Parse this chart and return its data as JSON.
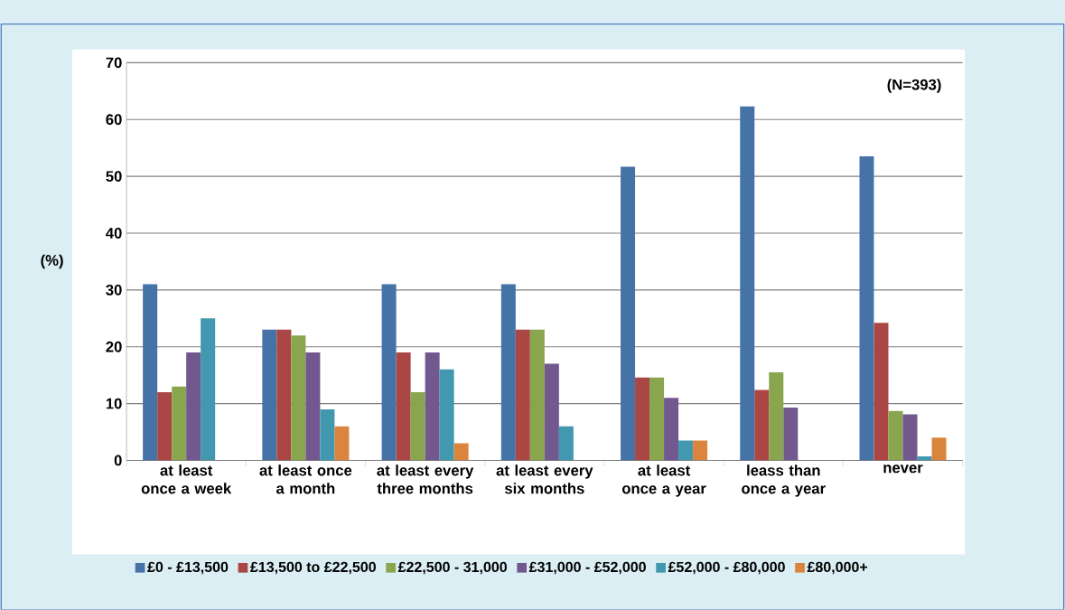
{
  "chart_data": {
    "type": "bar",
    "ylabel": "(%)",
    "annotations": [
      "(N=393)"
    ],
    "categories": [
      "at least once a week",
      "at least once a month",
      "at least every three months",
      "at least every six months",
      "at least once a year",
      "leass than once a year",
      "never"
    ],
    "series": [
      {
        "name": "£0 - £13,500",
        "color": "#4572a7",
        "values": [
          31,
          23,
          31,
          31,
          51.7,
          62.3,
          53.5
        ]
      },
      {
        "name": "£13,500 to £22,500",
        "color": "#aa4643",
        "values": [
          12,
          23,
          19,
          23,
          14.6,
          12.4,
          24.2
        ]
      },
      {
        "name": "£22,500 - 31,000",
        "color": "#89a54e",
        "values": [
          13,
          22,
          12,
          23,
          14.6,
          15.5,
          8.7
        ]
      },
      {
        "name": "£31,000 - £52,000",
        "color": "#71588f",
        "values": [
          19,
          19,
          19,
          17,
          11,
          9.3,
          8.1
        ]
      },
      {
        "name": "£52,000 - £80,000",
        "color": "#4198af",
        "values": [
          25,
          9,
          16,
          6,
          3.5,
          0,
          0.7
        ]
      },
      {
        "name": "£80,000+",
        "color": "#db843d",
        "values": [
          0,
          6,
          3,
          0,
          3.5,
          0,
          4
        ]
      }
    ],
    "ylim": [
      0,
      70
    ],
    "yticks": [
      0,
      10,
      20,
      30,
      40,
      50,
      60,
      70
    ],
    "grid": "y",
    "legend": "bottom"
  }
}
